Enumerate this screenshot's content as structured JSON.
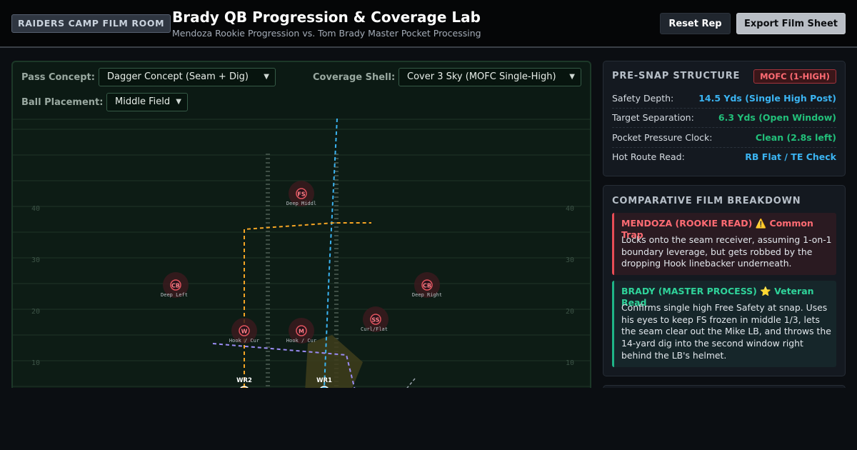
{
  "header": {
    "badge": "RAIDERS CAMP FILM ROOM",
    "title": "Brady QB Progression & Coverage Lab",
    "subtitle": "Mendoza Rookie Progression vs. Tom Brady Master Pocket Processing",
    "reset_label": "Reset Rep",
    "export_label": "Export Film Sheet"
  },
  "controls": {
    "concept_label": "Pass Concept:",
    "concept_value": "Dagger Concept (Seam + Dig)",
    "coverage_label": "Coverage Shell:",
    "coverage_value": "Cover 3 Sky (MOFC Single-High)",
    "placement_label": "Ball Placement:",
    "placement_value": "Middle Field"
  },
  "field": {
    "yard_numbers": [
      "40",
      "30",
      "20",
      "10"
    ],
    "defenders": [
      {
        "abbr": "FS",
        "zone": "Deep Middl"
      },
      {
        "abbr": "CB",
        "zone": "Deep Left"
      },
      {
        "abbr": "CB",
        "zone": "Deep Right"
      },
      {
        "abbr": "SS",
        "zone": "Curl/Flat"
      },
      {
        "abbr": "W",
        "zone": "Hook / Cur"
      },
      {
        "abbr": "M",
        "zone": "Hook / Cur"
      }
    ],
    "receivers": [
      {
        "label": "WR2",
        "color": "#f5a524"
      },
      {
        "label": "WR1",
        "color": "#38bdf8"
      }
    ]
  },
  "prestructure": {
    "title": "PRE-SNAP STRUCTURE",
    "badge": "MOFC (1-HIGH)",
    "rows": [
      {
        "key": "Safety Depth:",
        "value": "14.5 Yds (Single High Post)",
        "color": "#3bb4f2"
      },
      {
        "key": "Target Separation:",
        "value": "6.3 Yds (Open Window)",
        "color": "#22c07a"
      },
      {
        "key": "Pocket Pressure Clock:",
        "value": "Clean (2.8s left)",
        "color": "#22c07a"
      },
      {
        "key": "Hot Route Read:",
        "value": "RB Flat / TE Check",
        "color": "#3bb4f2"
      }
    ]
  },
  "breakdown": {
    "title": "COMPARATIVE FILM BREAKDOWN",
    "mendoza": {
      "heading": "MENDOZA (ROOKIE READ) ⚠️ Common Trap",
      "body": "Locks onto the seam receiver, assuming 1-on-1 boundary leverage, but gets robbed by the dropping Hook linebacker underneath."
    },
    "brady": {
      "heading": "BRADY (MASTER PROCESS) ⭐ Veteran Read",
      "body": "Confirms single high Free Safety at snap. Uses his eyes to keep FS frozen in middle 1/3, lets the seam clear out the Mike LB, and throws the 14-yard dig into the second window right behind the LB's helmet."
    }
  }
}
